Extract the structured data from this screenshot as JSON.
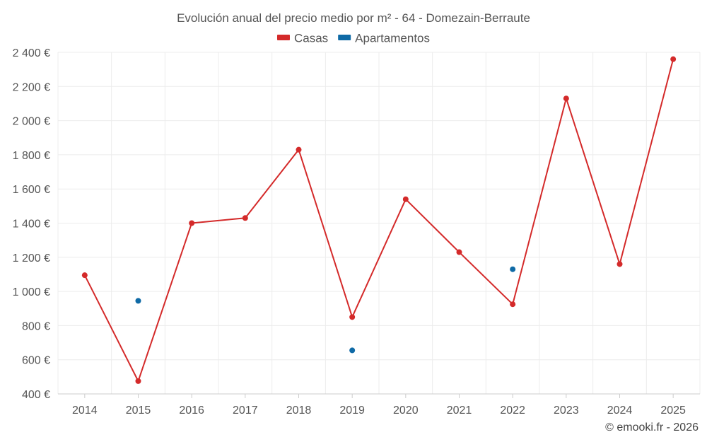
{
  "chart_data": {
    "type": "line",
    "title": "Evolución anual del precio medio por m² - 64 - Domezain-Berraute",
    "categories": [
      "2014",
      "2015",
      "2016",
      "2017",
      "2018",
      "2019",
      "2020",
      "2021",
      "2022",
      "2023",
      "2024",
      "2025"
    ],
    "ylim": [
      400,
      2400
    ],
    "yticks": [
      400,
      600,
      800,
      1000,
      1200,
      1400,
      1600,
      1800,
      2000,
      2200,
      2400
    ],
    "ytick_labels": [
      "400 €",
      "600 €",
      "800 €",
      "1 000 €",
      "1 200 €",
      "1 400 €",
      "1 600 €",
      "1 800 €",
      "2 000 €",
      "2 200 €",
      "2 400 €"
    ],
    "grid": true,
    "legend_position": "top-center",
    "series": [
      {
        "name": "Casas",
        "color": "#d42a2a",
        "style": "line-markers",
        "values": [
          1095,
          475,
          1400,
          1430,
          1830,
          850,
          1540,
          1230,
          925,
          2130,
          1160,
          2360
        ]
      },
      {
        "name": "Apartamentos",
        "color": "#0f6aa6",
        "style": "markers",
        "values": [
          null,
          945,
          null,
          null,
          null,
          655,
          null,
          null,
          1130,
          null,
          null,
          null
        ]
      }
    ]
  },
  "credit": "© emooki.fr - 2026"
}
